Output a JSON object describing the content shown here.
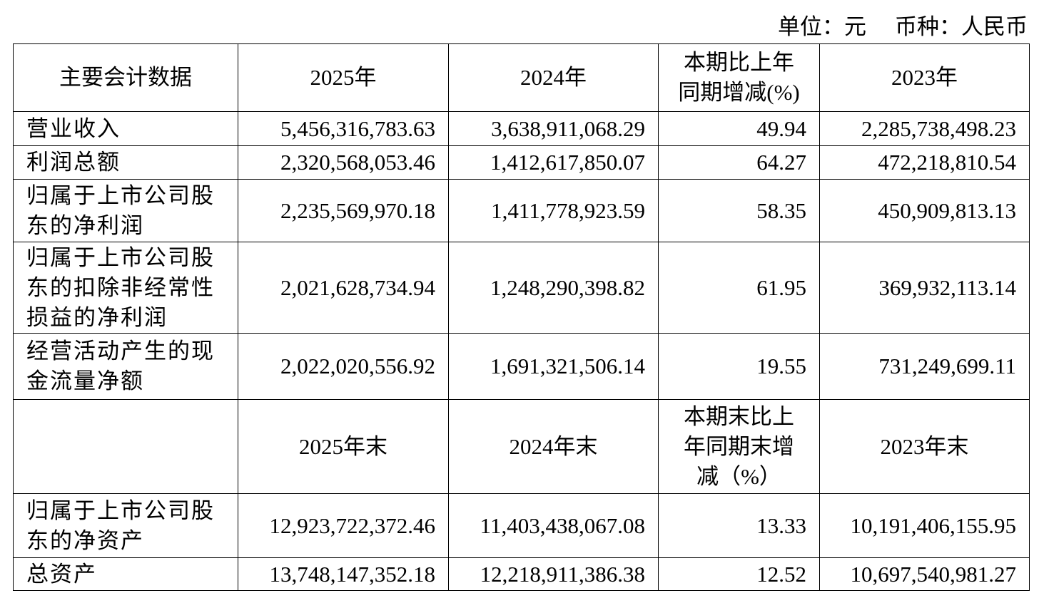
{
  "unit": "单位：元",
  "currency": "币种：人民币",
  "table": {
    "header": [
      "主要会计数据",
      "2025年",
      "2024年",
      "本期比上年同期增减(%)",
      "2023年"
    ],
    "rows": [
      [
        "营业收入",
        "5,456,316,783.63",
        "3,638,911,068.29",
        "49.94",
        "2,285,738,498.23"
      ],
      [
        "利润总额",
        "2,320,568,053.46",
        "1,412,617,850.07",
        "64.27",
        "472,218,810.54"
      ],
      [
        "归属于上市公司股东的净利润",
        "2,235,569,970.18",
        "1,411,778,923.59",
        "58.35",
        "450,909,813.13"
      ],
      [
        "归属于上市公司股东的扣除非经常性损益的净利润",
        "2,021,628,734.94",
        "1,248,290,398.82",
        "61.95",
        "369,932,113.14"
      ],
      [
        "经营活动产生的现金流量净额",
        "2,022,020,556.92",
        "1,691,321,506.14",
        "19.55",
        "731,249,699.11"
      ]
    ],
    "subheader": [
      "2025年末",
      "2024年末",
      "本期末比上年同期末增减（%）",
      "2023年末"
    ],
    "rows2": [
      [
        "归属于上市公司股东的净资产",
        "12,923,722,372.46",
        "11,403,438,067.08",
        "13.33",
        "10,191,406,155.95"
      ],
      [
        "总资产",
        "13,748,147,352.18",
        "12,218,911,386.38",
        "12.52",
        "10,697,540,981.27"
      ]
    ]
  }
}
